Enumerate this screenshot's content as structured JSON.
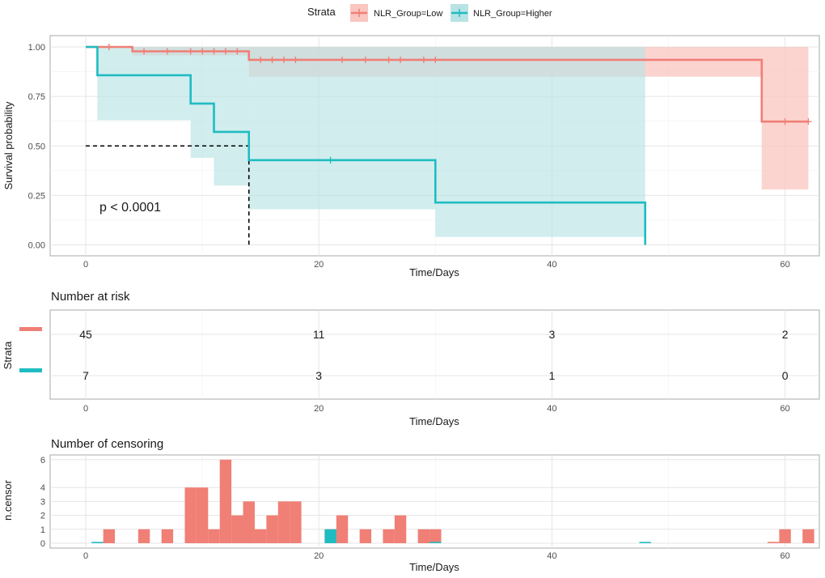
{
  "legend": {
    "title": "Strata",
    "items": [
      {
        "label": "NLR_Group=Low",
        "color": "#F07F76"
      },
      {
        "label": "NLR_Group=Higher",
        "color": "#1FBCC1"
      }
    ]
  },
  "chart_data": [
    {
      "type": "line",
      "panel": "survival",
      "xlabel": "Time/Days",
      "ylabel": "Survival probability",
      "xlim": [
        -5,
        63
      ],
      "ylim": [
        -0.05,
        1.05
      ],
      "xticks": [
        0,
        20,
        40,
        60
      ],
      "yticks": [
        0.0,
        0.25,
        0.5,
        0.75,
        1.0
      ],
      "ytick_labels": [
        "0.00",
        "0.25",
        "0.50",
        "0.75",
        "1.00"
      ],
      "annotation": "p < 0.0001",
      "median_line": {
        "y": 0.5,
        "x": 14
      },
      "series": [
        {
          "name": "NLR_Group=Low",
          "color": "#F07F76",
          "fill": "#F9C6C0",
          "steps": [
            [
              0,
              1.0
            ],
            [
              4,
              0.978
            ],
            [
              14,
              0.935
            ],
            [
              58,
              0.623
            ],
            [
              62,
              0.623
            ]
          ],
          "ci": [
            [
              0,
              1.0,
              1.0
            ],
            [
              4,
              1.0,
              0.957
            ],
            [
              14,
              1.0,
              0.85
            ],
            [
              58,
              1.0,
              0.28
            ],
            [
              62,
              1.0,
              0.28
            ]
          ],
          "censor_times": [
            2,
            5,
            7,
            9,
            10,
            11,
            12,
            13,
            15,
            16,
            17,
            18,
            22,
            24,
            26,
            27,
            29,
            30
          ],
          "censor_values": [
            1.0,
            0.978,
            0.978,
            0.978,
            0.978,
            0.978,
            0.978,
            0.978,
            0.935,
            0.935,
            0.935,
            0.935,
            0.935,
            0.935,
            0.935,
            0.935,
            0.935,
            0.935
          ],
          "extra_censor": [
            [
              60,
              0.623
            ],
            [
              62,
              0.623
            ]
          ]
        },
        {
          "name": "NLR_Group=Higher",
          "color": "#1FBCC1",
          "fill": "#B8E3E5",
          "steps": [
            [
              0,
              1.0
            ],
            [
              1,
              0.857
            ],
            [
              9,
              0.714
            ],
            [
              11,
              0.571
            ],
            [
              14,
              0.428
            ],
            [
              30,
              0.214
            ],
            [
              48,
              0.0
            ]
          ],
          "ci": [
            [
              1,
              1.0,
              0.63
            ],
            [
              9,
              1.0,
              0.44
            ],
            [
              11,
              1.0,
              0.3
            ],
            [
              14,
              1.0,
              0.18
            ],
            [
              30,
              1.0,
              0.04
            ],
            [
              48,
              1.0,
              0.04
            ]
          ],
          "censor_times": [
            21
          ],
          "censor_values": [
            0.428
          ]
        }
      ]
    },
    {
      "type": "table",
      "panel": "risk",
      "title": "Number at risk",
      "ylabel": "Strata",
      "xlabel": "Time/Days",
      "xticks": [
        0,
        20,
        40,
        60
      ],
      "rows": [
        {
          "series": "NLR_Group=Low",
          "color": "#F07F76",
          "values": [
            "45",
            "11",
            "3",
            "2"
          ]
        },
        {
          "series": "NLR_Group=Higher",
          "color": "#1FBCC1",
          "values": [
            "7",
            "3",
            "1",
            "0"
          ]
        }
      ]
    },
    {
      "type": "bar",
      "panel": "censoring",
      "title": "Number of censoring",
      "ylabel": "n.censor",
      "xlabel": "Time/Days",
      "xticks": [
        0,
        20,
        40,
        60
      ],
      "yticks": [
        0,
        1,
        2,
        3,
        4,
        6
      ],
      "ylim": [
        0,
        6
      ],
      "series": [
        {
          "name": "NLR_Group=Low",
          "color": "#F07F76",
          "x": [
            2,
            5,
            7,
            9,
            10,
            11,
            12,
            13,
            14,
            15,
            16,
            17,
            18,
            21,
            22,
            24,
            26,
            27,
            29,
            30,
            59,
            60,
            62
          ],
          "values": [
            1,
            1,
            1,
            4,
            4,
            1,
            6,
            2,
            3,
            1,
            2,
            3,
            3,
            1,
            2,
            1,
            1,
            2,
            1,
            1,
            0,
            1,
            1
          ]
        },
        {
          "name": "NLR_Group=Higher",
          "color": "#1FBCC1",
          "x": [
            1,
            21,
            30,
            48
          ],
          "values": [
            0,
            1,
            0,
            0
          ]
        }
      ]
    }
  ]
}
